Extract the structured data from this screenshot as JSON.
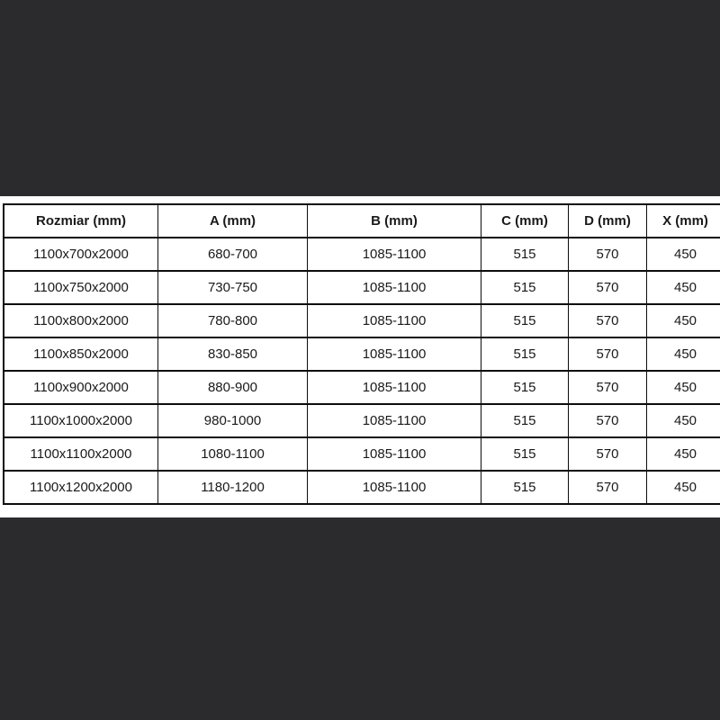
{
  "colors": {
    "background": "#2b2b2d",
    "panel": "#ffffff",
    "border": "#0d0d0d",
    "text": "#1a1a1a"
  },
  "chart_data": {
    "type": "table",
    "title": "",
    "columns": [
      "Rozmiar (mm)",
      "A (mm)",
      "B (mm)",
      "C (mm)",
      "D (mm)",
      "X (mm)"
    ],
    "rows": [
      [
        "1100x700x2000",
        "680-700",
        "1085-1100",
        "515",
        "570",
        "450"
      ],
      [
        "1100x750x2000",
        "730-750",
        "1085-1100",
        "515",
        "570",
        "450"
      ],
      [
        "1100x800x2000",
        "780-800",
        "1085-1100",
        "515",
        "570",
        "450"
      ],
      [
        "1100x850x2000",
        "830-850",
        "1085-1100",
        "515",
        "570",
        "450"
      ],
      [
        "1100x900x2000",
        "880-900",
        "1085-1100",
        "515",
        "570",
        "450"
      ],
      [
        "1100x1000x2000",
        "980-1000",
        "1085-1100",
        "515",
        "570",
        "450"
      ],
      [
        "1100x1100x2000",
        "1080-1100",
        "1085-1100",
        "515",
        "570",
        "450"
      ],
      [
        "1100x1200x2000",
        "1180-1200",
        "1085-1100",
        "515",
        "570",
        "450"
      ]
    ]
  }
}
